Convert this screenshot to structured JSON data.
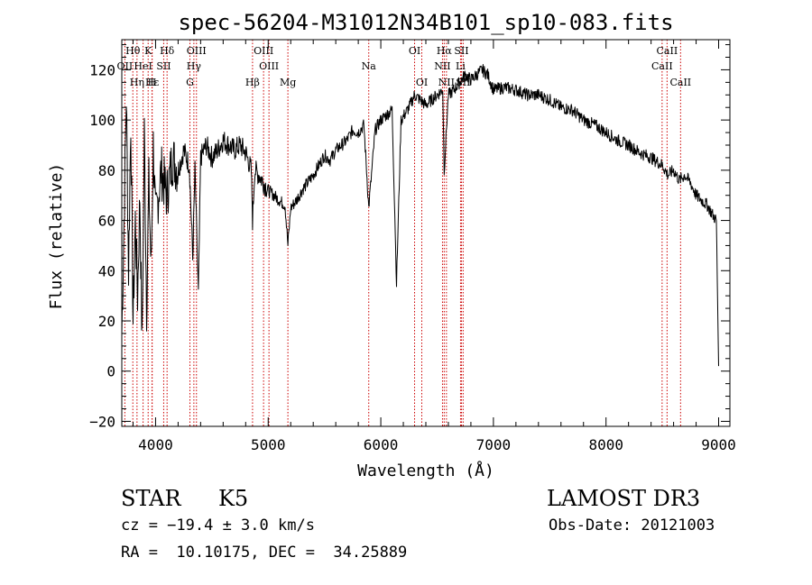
{
  "chart_data": {
    "type": "line",
    "title": "spec-56204-M31012N34B101_sp10-083.fits",
    "xlabel": "Wavelength (Å)",
    "ylabel": "Flux (relative)",
    "xlim": [
      3700,
      9100
    ],
    "ylim": [
      -22,
      132
    ],
    "x_ticks": [
      4000,
      5000,
      6000,
      7000,
      8000,
      9000
    ],
    "y_ticks": [
      -20,
      0,
      20,
      40,
      60,
      80,
      100,
      120
    ],
    "grid": false,
    "series": [
      {
        "name": "flux",
        "x": [
          3700,
          3720,
          3740,
          3760,
          3780,
          3800,
          3820,
          3840,
          3860,
          3880,
          3900,
          3920,
          3940,
          3960,
          3980,
          4000,
          4050,
          4100,
          4150,
          4200,
          4250,
          4300,
          4330,
          4350,
          4380,
          4400,
          4450,
          4500,
          4550,
          4600,
          4650,
          4700,
          4750,
          4800,
          4850,
          4861,
          4880,
          4920,
          4960,
          5000,
          5050,
          5100,
          5150,
          5175,
          5200,
          5250,
          5300,
          5350,
          5400,
          5450,
          5500,
          5550,
          5600,
          5650,
          5700,
          5750,
          5800,
          5850,
          5893,
          5950,
          6000,
          6050,
          6100,
          6140,
          6180,
          6250,
          6300,
          6350,
          6400,
          6450,
          6500,
          6550,
          6563,
          6600,
          6650,
          6700,
          6750,
          6800,
          6850,
          6900,
          6950,
          7000,
          7100,
          7200,
          7300,
          7400,
          7500,
          7600,
          7700,
          7800,
          7900,
          8000,
          8100,
          8200,
          8300,
          8400,
          8500,
          8550,
          8600,
          8650,
          8700,
          8750,
          8800,
          8850,
          8900,
          8950,
          8980,
          9000
        ],
        "y": [
          15,
          60,
          110,
          40,
          100,
          20,
          60,
          30,
          70,
          10,
          95,
          25,
          75,
          40,
          90,
          60,
          80,
          70,
          85,
          80,
          88,
          82,
          45,
          80,
          30,
          85,
          90,
          85,
          88,
          92,
          90,
          88,
          90,
          87,
          80,
          60,
          80,
          78,
          75,
          72,
          70,
          68,
          66,
          50,
          65,
          68,
          72,
          75,
          78,
          82,
          86,
          84,
          88,
          90,
          92,
          96,
          95,
          98,
          65,
          96,
          100,
          102,
          104,
          35,
          100,
          105,
          110,
          108,
          106,
          108,
          110,
          112,
          80,
          110,
          112,
          115,
          118,
          116,
          118,
          120,
          118,
          112,
          113,
          112,
          110,
          110,
          108,
          105,
          104,
          100,
          98,
          95,
          92,
          90,
          87,
          85,
          82,
          78,
          80,
          76,
          78,
          75,
          70,
          68,
          66,
          62,
          60,
          2
        ]
      }
    ],
    "lines": [
      {
        "label": "Hθ",
        "x": 3798,
        "row": 1,
        "tier": 1
      },
      {
        "label": "OII",
        "x": 3727,
        "row": 2,
        "tier": 1
      },
      {
        "label": "Hη",
        "x": 3835,
        "row": 3,
        "tier": 1
      },
      {
        "label": "K",
        "x": 3934,
        "row": 1,
        "tier": 1
      },
      {
        "label": "HeI",
        "x": 3889,
        "row": 2,
        "tier": 1
      },
      {
        "label": "H",
        "x": 3968,
        "row": 3,
        "tier": 1
      },
      {
        "label": "Hε",
        "x": 3970,
        "row": 3,
        "tier": 1
      },
      {
        "label": "Hδ",
        "x": 4102,
        "row": 1,
        "tier": 1
      },
      {
        "label": "SII",
        "x": 4072,
        "row": 2,
        "tier": 1
      },
      {
        "label": "OIII",
        "x": 4363,
        "row": 1,
        "tier": 1
      },
      {
        "label": "Hγ",
        "x": 4340,
        "row": 2,
        "tier": 1
      },
      {
        "label": "G",
        "x": 4305,
        "row": 3,
        "tier": 1
      },
      {
        "label": "OIII",
        "x": 4959,
        "row": 1,
        "tier": 1
      },
      {
        "label": "OIII",
        "x": 5007,
        "row": 2,
        "tier": 1
      },
      {
        "label": "Hβ",
        "x": 4861,
        "row": 3,
        "tier": 1
      },
      {
        "label": "Mg",
        "x": 5175,
        "row": 3,
        "tier": 1
      },
      {
        "label": "Na",
        "x": 5893,
        "row": 2,
        "tier": 1
      },
      {
        "label": "OI",
        "x": 6300,
        "row": 1,
        "tier": 1
      },
      {
        "label": "OI",
        "x": 6364,
        "row": 3,
        "tier": 1
      },
      {
        "label": "Hα",
        "x": 6563,
        "row": 1,
        "tier": 1
      },
      {
        "label": "SII",
        "x": 6716,
        "row": 1,
        "tier": 1
      },
      {
        "label": "NII",
        "x": 6548,
        "row": 2,
        "tier": 1
      },
      {
        "label": "Li",
        "x": 6708,
        "row": 2,
        "tier": 1
      },
      {
        "label": "NII",
        "x": 6583,
        "row": 3,
        "tier": 1
      },
      {
        "label": "SII",
        "x": 6731,
        "row": 3,
        "tier": 1
      },
      {
        "label": "CaII",
        "x": 8542,
        "row": 1,
        "tier": 1
      },
      {
        "label": "CaII",
        "x": 8498,
        "row": 2,
        "tier": 1
      },
      {
        "label": "CaII",
        "x": 8662,
        "row": 3,
        "tier": 1
      }
    ],
    "annotations": [],
    "legend": "none"
  },
  "info": {
    "object_class": "STAR",
    "subclass": "K5",
    "survey": "LAMOST DR3",
    "redshift_line": "cz = −19.4 ± 3.0 km/s",
    "obs_date": "Obs-Date: 20121003",
    "coords": "RA =  10.10175, DEC =  34.25889"
  },
  "colors": {
    "line": "#000000",
    "marker_lines": "#cc0000",
    "axes": "#000000",
    "background": "#ffffff"
  }
}
